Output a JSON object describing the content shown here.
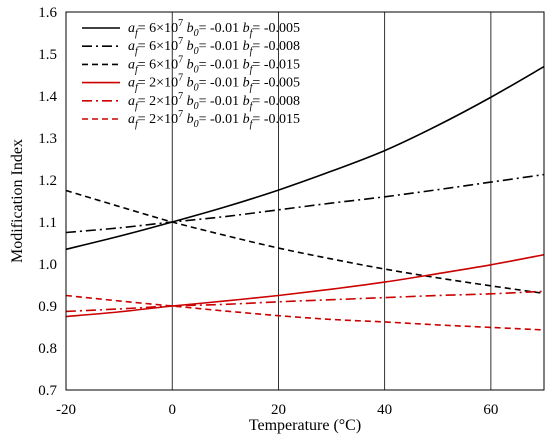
{
  "chart_data": {
    "type": "line",
    "title": "",
    "xlabel": "Temperature (°C)",
    "ylabel": "Modification Index",
    "xlim": [
      -20,
      70
    ],
    "ylim": [
      0.7,
      1.6
    ],
    "xticks": [
      -20,
      0,
      20,
      40,
      60
    ],
    "yticks": [
      0.7,
      0.8,
      0.9,
      1.0,
      1.1,
      1.2,
      1.3,
      1.4,
      1.5,
      1.6
    ],
    "ytick_labels": [
      "0.7",
      "0.8",
      "0.9",
      "1.0",
      "1.1",
      "1.2",
      "1.3",
      "1.4",
      "1.5",
      "1.6"
    ],
    "grid": {
      "vertical": true,
      "horizontal": false
    },
    "legend_position": "top-left",
    "series": [
      {
        "name_parts": [
          "a",
          "f",
          "= 6×10",
          "7",
          " b",
          "0",
          "= -0.01 b",
          "f",
          "= -0.005"
        ],
        "color": "#000000",
        "dash": "solid",
        "x": [
          -20,
          -10,
          0,
          10,
          20,
          30,
          40,
          50,
          60,
          70
        ],
        "y": [
          1.035,
          1.066,
          1.1,
          1.136,
          1.176,
          1.221,
          1.27,
          1.33,
          1.397,
          1.47
        ]
      },
      {
        "name_parts": [
          "a",
          "f",
          "= 6×10",
          "7",
          " b",
          "0",
          "= -0.01 b",
          "f",
          "= -0.008"
        ],
        "color": "#000000",
        "dash": "dashdot",
        "x": [
          -20,
          -10,
          0,
          10,
          20,
          30,
          40,
          50,
          60,
          70
        ],
        "y": [
          1.075,
          1.086,
          1.1,
          1.113,
          1.129,
          1.145,
          1.16,
          1.177,
          1.195,
          1.213
        ]
      },
      {
        "name_parts": [
          "a",
          "f",
          "= 6×10",
          "7",
          " b",
          "0",
          "= -0.01 b",
          "f",
          "= -0.015"
        ],
        "color": "#000000",
        "dash": "dashed",
        "x": [
          -20,
          -10,
          0,
          10,
          20,
          30,
          40,
          50,
          60,
          70
        ],
        "y": [
          1.175,
          1.137,
          1.1,
          1.068,
          1.038,
          1.012,
          0.988,
          0.967,
          0.948,
          0.93
        ]
      },
      {
        "name_parts": [
          "a",
          "f",
          "= 2×10",
          "7",
          " b",
          "0",
          "= -0.01 b",
          "f",
          "= -0.005"
        ],
        "color": "#cc0000",
        "dash": "solid",
        "x": [
          -20,
          -10,
          0,
          10,
          20,
          30,
          40,
          50,
          60,
          70
        ],
        "y": [
          0.875,
          0.886,
          0.9,
          0.912,
          0.925,
          0.94,
          0.957,
          0.977,
          0.998,
          1.022
        ]
      },
      {
        "name_parts": [
          "a",
          "f",
          "= 2×10",
          "7",
          " b",
          "0",
          "= -0.01 b",
          "f",
          "= -0.008"
        ],
        "color": "#cc0000",
        "dash": "dashdot",
        "x": [
          -20,
          -10,
          0,
          10,
          20,
          30,
          40,
          50,
          60,
          70
        ],
        "y": [
          0.887,
          0.893,
          0.9,
          0.904,
          0.91,
          0.915,
          0.92,
          0.925,
          0.929,
          0.935
        ]
      },
      {
        "name_parts": [
          "a",
          "f",
          "= 2×10",
          "7",
          " b",
          "0",
          "= -0.01 b",
          "f",
          "= -0.015"
        ],
        "color": "#cc0000",
        "dash": "dashed",
        "x": [
          -20,
          -10,
          0,
          10,
          20,
          30,
          40,
          50,
          60,
          70
        ],
        "y": [
          0.925,
          0.912,
          0.9,
          0.888,
          0.877,
          0.868,
          0.862,
          0.855,
          0.849,
          0.843
        ]
      }
    ]
  }
}
